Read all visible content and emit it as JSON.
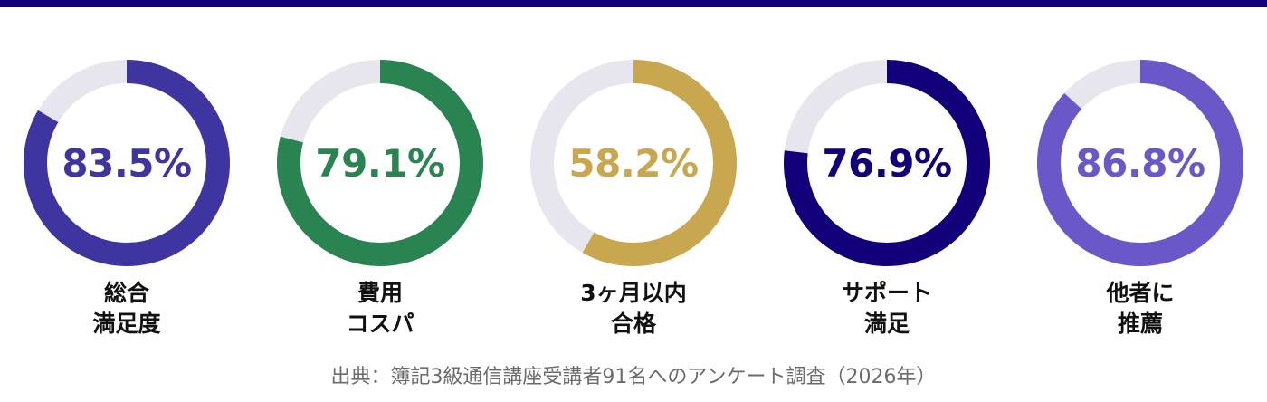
{
  "theme": {
    "top_bar_color": "#12007a",
    "track_color": "#e7e6ef",
    "label_color": "#111111",
    "source_color": "#6b6b6b"
  },
  "chart_data": {
    "type": "pie",
    "subtype": "donut-progress",
    "items": [
      {
        "value": 83.5,
        "value_label": "83.5%",
        "label_lines": [
          "総合",
          "満足度"
        ],
        "color": "#3f35a0"
      },
      {
        "value": 79.1,
        "value_label": "79.1%",
        "label_lines": [
          "費用",
          "コスパ"
        ],
        "color": "#2a8452"
      },
      {
        "value": 58.2,
        "value_label": "58.2%",
        "label_lines": [
          "3ヶ月以内",
          "合格"
        ],
        "color": "#c9a74f"
      },
      {
        "value": 76.9,
        "value_label": "76.9%",
        "label_lines": [
          "サポート",
          "満足"
        ],
        "color": "#12007a"
      },
      {
        "value": 86.8,
        "value_label": "86.8%",
        "label_lines": [
          "他者に",
          "推薦"
        ],
        "color": "#6a58c9"
      }
    ],
    "source": "出典：簿記3級通信講座受講者91名へのアンケート調査（2026年）"
  }
}
